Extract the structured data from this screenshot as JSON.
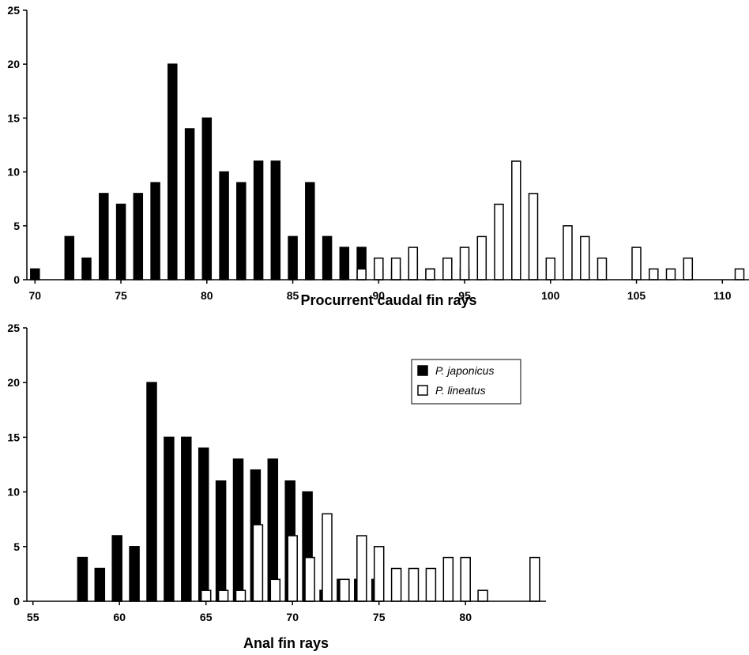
{
  "chart_data": [
    {
      "type": "bar",
      "xlabel": "Procurrent caudal fin rays",
      "ylabel": "",
      "xlim": [
        70,
        111
      ],
      "ylim": [
        0,
        25
      ],
      "x_ticks": [
        70,
        75,
        80,
        85,
        90,
        95,
        100,
        105,
        110
      ],
      "y_ticks": [
        0,
        5,
        10,
        15,
        20,
        25
      ],
      "series": [
        {
          "name": "P. japonicus",
          "fill": "#000000",
          "points": [
            [
              70,
              1
            ],
            [
              72,
              4
            ],
            [
              73,
              2
            ],
            [
              74,
              8
            ],
            [
              75,
              7
            ],
            [
              76,
              8
            ],
            [
              77,
              9
            ],
            [
              78,
              20
            ],
            [
              79,
              14
            ],
            [
              80,
              15
            ],
            [
              81,
              10
            ],
            [
              82,
              9
            ],
            [
              83,
              11
            ],
            [
              84,
              11
            ],
            [
              85,
              4
            ],
            [
              86,
              9
            ],
            [
              87,
              4
            ],
            [
              88,
              3
            ],
            [
              89,
              3
            ],
            [
              90,
              1
            ],
            [
              91,
              1
            ],
            [
              92,
              2
            ],
            [
              93,
              1
            ],
            [
              95,
              1
            ]
          ]
        },
        {
          "name": "P. lineatus",
          "fill": "#ffffff",
          "points": [
            [
              89,
              1
            ],
            [
              90,
              2
            ],
            [
              91,
              2
            ],
            [
              92,
              3
            ],
            [
              93,
              1
            ],
            [
              94,
              2
            ],
            [
              95,
              3
            ],
            [
              96,
              4
            ],
            [
              97,
              7
            ],
            [
              98,
              11
            ],
            [
              99,
              8
            ],
            [
              100,
              2
            ],
            [
              101,
              5
            ],
            [
              102,
              4
            ],
            [
              103,
              2
            ],
            [
              105,
              3
            ],
            [
              106,
              1
            ],
            [
              107,
              1
            ],
            [
              108,
              2
            ],
            [
              111,
              1
            ]
          ]
        }
      ]
    },
    {
      "type": "bar",
      "xlabel": "Anal fin rays",
      "ylabel": "",
      "xlim": [
        55,
        84
      ],
      "ylim": [
        0,
        25
      ],
      "x_ticks": [
        55,
        60,
        65,
        70,
        75,
        80
      ],
      "y_ticks": [
        0,
        5,
        10,
        15,
        20,
        25
      ],
      "legend": {
        "position": "top-right",
        "entries": [
          {
            "label": "P. japonicus",
            "fill": "#000000"
          },
          {
            "label": "P. lineatus",
            "fill": "#ffffff"
          }
        ]
      },
      "series": [
        {
          "name": "P. japonicus",
          "fill": "#000000",
          "points": [
            [
              58,
              4
            ],
            [
              59,
              3
            ],
            [
              60,
              6
            ],
            [
              61,
              5
            ],
            [
              62,
              20
            ],
            [
              63,
              15
            ],
            [
              64,
              15
            ],
            [
              65,
              14
            ],
            [
              66,
              11
            ],
            [
              67,
              13
            ],
            [
              68,
              12
            ],
            [
              69,
              13
            ],
            [
              70,
              11
            ],
            [
              71,
              10
            ],
            [
              72,
              1
            ],
            [
              73,
              2
            ],
            [
              74,
              2
            ],
            [
              75,
              2
            ]
          ]
        },
        {
          "name": "P. lineatus",
          "fill": "#ffffff",
          "points": [
            [
              65,
              1
            ],
            [
              66,
              1
            ],
            [
              67,
              1
            ],
            [
              68,
              7
            ],
            [
              69,
              2
            ],
            [
              70,
              6
            ],
            [
              71,
              4
            ],
            [
              72,
              8
            ],
            [
              73,
              2
            ],
            [
              74,
              6
            ],
            [
              75,
              5
            ],
            [
              76,
              3
            ],
            [
              77,
              3
            ],
            [
              78,
              3
            ],
            [
              79,
              4
            ],
            [
              80,
              4
            ],
            [
              81,
              1
            ],
            [
              84,
              4
            ]
          ]
        }
      ]
    }
  ]
}
